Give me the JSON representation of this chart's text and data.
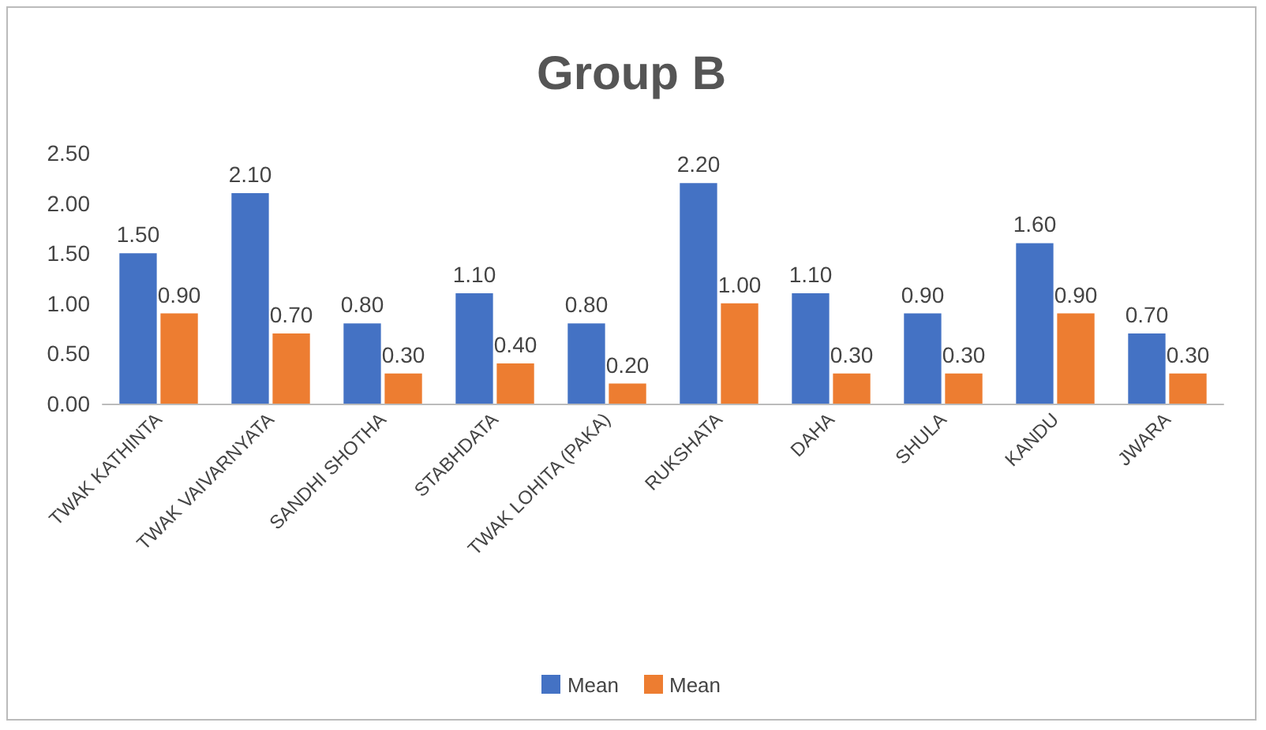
{
  "chart_data": {
    "type": "bar",
    "title": "Group B",
    "categories": [
      "TWAK KATHINTA",
      "TWAK VAIVARNYATA",
      "SANDHI SHOTHA",
      "STABHDATA",
      "TWAK LOHITA (PAKA)",
      "RUKSHATA",
      "DAHA",
      "SHULA",
      "KANDU",
      "JWARA"
    ],
    "series": [
      {
        "name": "Mean",
        "color": "#4472c4",
        "values": [
          1.5,
          2.1,
          0.8,
          1.1,
          0.8,
          2.2,
          1.1,
          0.9,
          1.6,
          0.7
        ],
        "value_labels": [
          "1.50",
          "2.10",
          "0.80",
          "1.10",
          "0.80",
          "2.20",
          "1.10",
          "0.90",
          "1.60",
          "0.70"
        ]
      },
      {
        "name": "Mean",
        "color": "#ed7d31",
        "values": [
          0.9,
          0.7,
          0.3,
          0.4,
          0.2,
          1.0,
          0.3,
          0.3,
          0.9,
          0.3
        ],
        "value_labels": [
          "0.90",
          "0.70",
          "0.30",
          "0.40",
          "0.20",
          "1.00",
          "0.30",
          "0.30",
          "0.90",
          "0.30"
        ]
      }
    ],
    "ylim": [
      0,
      2.5
    ],
    "yticks": [
      {
        "value": 0,
        "label": "0.00"
      },
      {
        "value": 0.5,
        "label": "0.50"
      },
      {
        "value": 1,
        "label": "1.00"
      },
      {
        "value": 1.5,
        "label": "1.50"
      },
      {
        "value": 2,
        "label": "2.00"
      },
      {
        "value": 2.5,
        "label": "2.50"
      }
    ],
    "legend": "bottom"
  }
}
